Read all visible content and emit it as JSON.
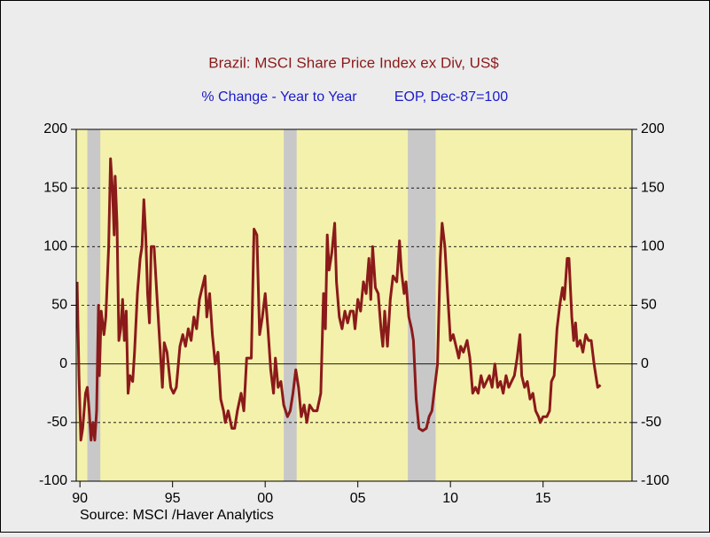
{
  "chart_data": {
    "type": "line",
    "title": "Brazil: MSCI Share Price Index ex Div, US$",
    "subtitle": "% Change - Year to Year",
    "subtitle_right": "EOP, Dec-87=100",
    "source": "Source:  MSCI /Haver Analytics",
    "color": "#8b1a1a",
    "plot_background": "#f4f1ac",
    "shade_color": "#c8c8c8",
    "xlim": [
      1989.8,
      2019.8
    ],
    "xticks": [
      {
        "value": 1990,
        "label": "90"
      },
      {
        "value": 1995,
        "label": "95"
      },
      {
        "value": 2000,
        "label": "00"
      },
      {
        "value": 2005,
        "label": "05"
      },
      {
        "value": 2010,
        "label": "10"
      },
      {
        "value": 2015,
        "label": "15"
      }
    ],
    "ylim": [
      -100,
      200
    ],
    "yticks": [
      -100,
      -50,
      0,
      50,
      100,
      150,
      200
    ],
    "grid": true,
    "shaded_regions": [
      {
        "start": 1990.4,
        "end": 1991.1
      },
      {
        "start": 2001.0,
        "end": 2001.7
      },
      {
        "start": 2007.7,
        "end": 2009.2
      }
    ],
    "x": [
      1989.85,
      1989.95,
      1990.05,
      1990.15,
      1990.3,
      1990.4,
      1990.5,
      1990.6,
      1990.7,
      1990.8,
      1990.9,
      1991.0,
      1991.05,
      1991.15,
      1991.3,
      1991.4,
      1991.55,
      1991.65,
      1991.75,
      1991.85,
      1991.9,
      1992.0,
      1992.1,
      1992.2,
      1992.3,
      1992.4,
      1992.5,
      1992.6,
      1992.7,
      1992.85,
      1992.95,
      1993.1,
      1993.25,
      1993.35,
      1993.45,
      1993.55,
      1993.65,
      1993.75,
      1993.85,
      1994.0,
      1994.15,
      1994.3,
      1994.45,
      1994.55,
      1994.7,
      1994.9,
      1995.05,
      1995.2,
      1995.4,
      1995.55,
      1995.7,
      1995.85,
      1996.0,
      1996.15,
      1996.3,
      1996.45,
      1996.6,
      1996.75,
      1996.85,
      1997.0,
      1997.15,
      1997.3,
      1997.45,
      1997.6,
      1997.75,
      1997.85,
      1998.0,
      1998.2,
      1998.35,
      1998.5,
      1998.7,
      1998.85,
      1999.0,
      1999.25,
      1999.4,
      1999.55,
      1999.7,
      1999.85,
      2000.0,
      2000.15,
      2000.3,
      2000.45,
      2000.55,
      2000.7,
      2000.85,
      2001.0,
      2001.2,
      2001.35,
      2001.5,
      2001.65,
      2001.8,
      2001.95,
      2002.1,
      2002.25,
      2002.4,
      2002.6,
      2002.8,
      2003.0,
      2003.15,
      2003.25,
      2003.35,
      2003.45,
      2003.6,
      2003.75,
      2003.85,
      2004.0,
      2004.15,
      2004.3,
      2004.45,
      2004.6,
      2004.75,
      2004.85,
      2005.0,
      2005.15,
      2005.3,
      2005.45,
      2005.6,
      2005.7,
      2005.8,
      2005.95,
      2006.1,
      2006.25,
      2006.35,
      2006.45,
      2006.6,
      2006.75,
      2006.9,
      2007.1,
      2007.25,
      2007.35,
      2007.5,
      2007.6,
      2007.75,
      2007.9,
      2008.0,
      2008.15,
      2008.3,
      2008.5,
      2008.7,
      2008.85,
      2009.0,
      2009.15,
      2009.3,
      2009.45,
      2009.55,
      2009.7,
      2009.85,
      2010.0,
      2010.15,
      2010.3,
      2010.45,
      2010.55,
      2010.7,
      2010.9,
      2011.05,
      2011.2,
      2011.35,
      2011.5,
      2011.65,
      2011.8,
      2011.95,
      2012.1,
      2012.25,
      2012.4,
      2012.55,
      2012.7,
      2012.85,
      2013.0,
      2013.15,
      2013.3,
      2013.45,
      2013.6,
      2013.75,
      2013.85,
      2014.0,
      2014.15,
      2014.3,
      2014.45,
      2014.6,
      2014.75,
      2014.85,
      2015.0,
      2015.2,
      2015.35,
      2015.45,
      2015.6,
      2015.75,
      2015.9,
      2016.05,
      2016.15,
      2016.3,
      2016.4,
      2016.55,
      2016.65,
      2016.75,
      2016.85,
      2017.0,
      2017.15,
      2017.3,
      2017.45,
      2017.6,
      2017.75,
      2017.85,
      2017.95,
      2018.1
    ],
    "values": [
      70,
      -10,
      -65,
      -55,
      -25,
      -20,
      -40,
      -65,
      -50,
      -65,
      -40,
      50,
      -10,
      45,
      25,
      40,
      100,
      175,
      150,
      110,
      160,
      120,
      20,
      30,
      55,
      20,
      45,
      -25,
      -10,
      -15,
      10,
      60,
      90,
      100,
      140,
      110,
      60,
      35,
      100,
      100,
      60,
      20,
      -20,
      18,
      10,
      -20,
      -25,
      -20,
      15,
      25,
      15,
      30,
      20,
      40,
      30,
      55,
      65,
      75,
      40,
      60,
      25,
      0,
      10,
      -30,
      -40,
      -50,
      -40,
      -55,
      -55,
      -40,
      -25,
      -40,
      5,
      5,
      115,
      110,
      25,
      40,
      60,
      30,
      -5,
      -25,
      5,
      -20,
      -15,
      -35,
      -45,
      -40,
      -25,
      -5,
      -20,
      -45,
      -35,
      -50,
      -35,
      -40,
      -40,
      -25,
      60,
      30,
      110,
      80,
      95,
      120,
      70,
      40,
      30,
      45,
      35,
      45,
      45,
      30,
      55,
      45,
      70,
      60,
      90,
      55,
      100,
      65,
      60,
      30,
      15,
      45,
      15,
      55,
      75,
      70,
      105,
      80,
      60,
      70,
      40,
      30,
      20,
      -30,
      -55,
      -57,
      -55,
      -45,
      -40,
      -20,
      0,
      90,
      120,
      100,
      60,
      20,
      25,
      15,
      5,
      15,
      10,
      20,
      5,
      -25,
      -20,
      -25,
      -10,
      -20,
      -15,
      -10,
      -20,
      0,
      -20,
      -15,
      -25,
      -10,
      -20,
      -15,
      -10,
      5,
      25,
      -10,
      -20,
      -15,
      -30,
      -25,
      -40,
      -45,
      -50,
      -45,
      -45,
      -40,
      -15,
      -10,
      30,
      50,
      65,
      55,
      90,
      90,
      40,
      20,
      35,
      15,
      20,
      10,
      25,
      20,
      20,
      0,
      -10,
      -20,
      -18
    ]
  }
}
